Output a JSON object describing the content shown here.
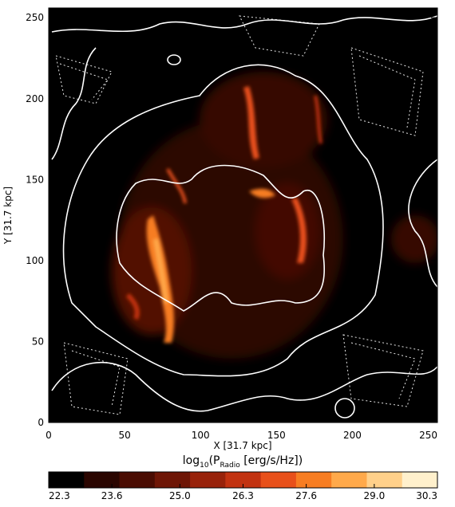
{
  "chart_data": {
    "type": "heatmap",
    "xlabel": "X [31.7 kpc]",
    "ylabel": "Y [31.7 kpc]",
    "xlim": [
      0,
      256
    ],
    "ylim": [
      0,
      256
    ],
    "xticks": [
      0,
      50,
      100,
      150,
      200,
      250
    ],
    "yticks": [
      0,
      50,
      100,
      150,
      200,
      250
    ],
    "colorbar": {
      "label": [
        "log",
        "10",
        "(P",
        "Radio",
        " [erg/s/Hz])"
      ],
      "lim": [
        22.3,
        30.3
      ],
      "ticks": [
        22.3,
        23.6,
        {
          "value": 25,
          "label": "25.0"
        },
        26.3,
        27.6,
        {
          "value": 29,
          "label": "29.0"
        },
        30.3
      ],
      "colors": [
        "#000000",
        "#2a0500",
        "#4a0c02",
        "#6e1606",
        "#98220a",
        "#c23210",
        "#e8501a",
        "#f77d22",
        "#ffa94a",
        "#ffd08a",
        "#fff0cc"
      ]
    }
  }
}
